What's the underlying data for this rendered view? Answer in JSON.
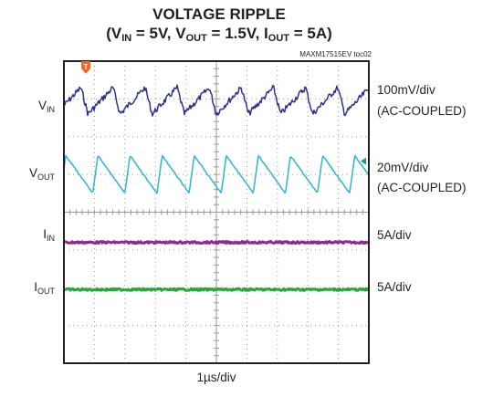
{
  "chart_data": {
    "type": "line",
    "title_line1": "VOLTAGE RIPPLE",
    "title_line2": {
      "open": "(V",
      "vin_sub": "IN",
      "mid1": " = 5V, V",
      "vout_sub": "OUT",
      "mid2": " = 1.5V, I",
      "iout_sub": "OUT",
      "close": " = 5A)"
    },
    "figure_code": "MAXM17515EV toc02",
    "xlabel": "1µs/div",
    "x_divisions": 10,
    "y_divisions": 8,
    "trigger_marker": "T",
    "channels": [
      {
        "label_main": "V",
        "label_sub": "IN",
        "scale": "100mV/div",
        "coupling": "(AC-COUPLED)",
        "color": "#2e3192",
        "waveform": "sawtooth-ripple",
        "cycles_per_div": 0.95,
        "peak_to_peak_div": 0.7
      },
      {
        "label_main": "V",
        "label_sub": "OUT",
        "scale": "20mV/div",
        "coupling": "(AC-COUPLED)",
        "color": "#2cb5d0",
        "waveform": "triangle-ripple",
        "cycles_per_div": 0.95,
        "peak_to_peak_div": 1.0
      },
      {
        "label_main": "I",
        "label_sub": "IN",
        "scale": "5A/div",
        "coupling": "",
        "color": "#92278f",
        "waveform": "flat",
        "cycles_per_div": 0,
        "peak_to_peak_div": 0.05
      },
      {
        "label_main": "I",
        "label_sub": "OUT",
        "scale": "5A/div",
        "coupling": "",
        "color": "#2aa537",
        "waveform": "flat",
        "cycles_per_div": 0,
        "peak_to_peak_div": 0.05
      }
    ],
    "colors": {
      "grid": "#9a9a9a",
      "frame": "#231f20",
      "trigger": "#f26522",
      "level_marker": "#1b9e8e"
    }
  }
}
